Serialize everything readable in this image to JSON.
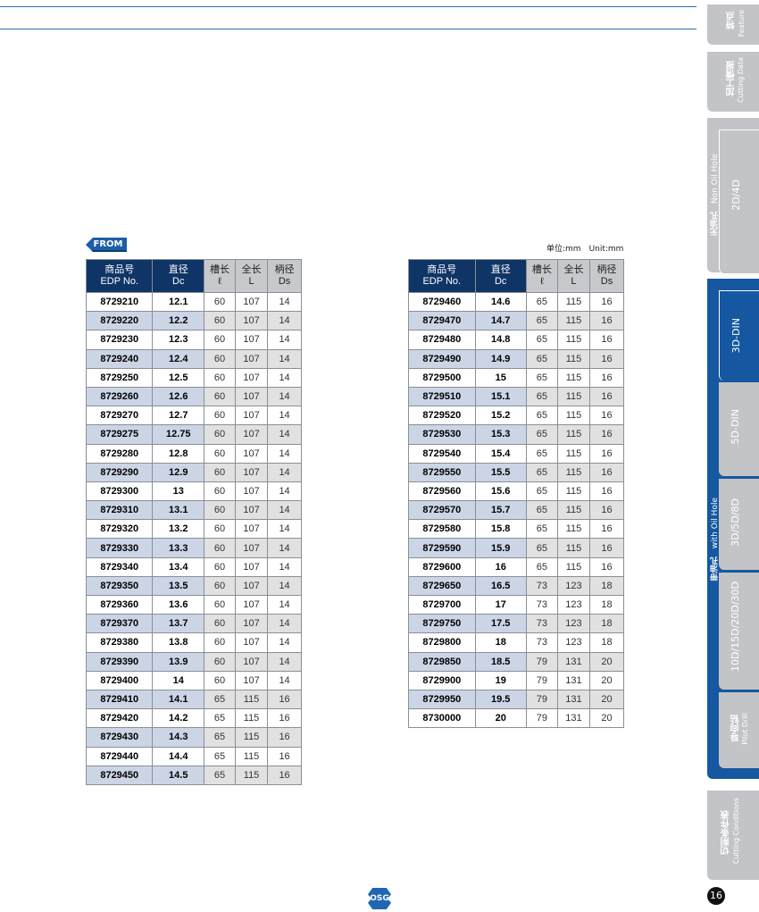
{
  "badge": "FROM",
  "unit": "单位:mm　Unit:mm",
  "headers": [
    [
      "商品号",
      "EDP No."
    ],
    [
      "直径",
      "Dc"
    ],
    [
      "槽长",
      "ℓ"
    ],
    [
      "全长",
      "L"
    ],
    [
      "柄径",
      "Ds"
    ]
  ],
  "left_rows": [
    [
      "8729210",
      "12.1",
      "60",
      "107",
      "14"
    ],
    [
      "8729220",
      "12.2",
      "60",
      "107",
      "14"
    ],
    [
      "8729230",
      "12.3",
      "60",
      "107",
      "14"
    ],
    [
      "8729240",
      "12.4",
      "60",
      "107",
      "14"
    ],
    [
      "8729250",
      "12.5",
      "60",
      "107",
      "14"
    ],
    [
      "8729260",
      "12.6",
      "60",
      "107",
      "14"
    ],
    [
      "8729270",
      "12.7",
      "60",
      "107",
      "14"
    ],
    [
      "8729275",
      "12.75",
      "60",
      "107",
      "14"
    ],
    [
      "8729280",
      "12.8",
      "60",
      "107",
      "14"
    ],
    [
      "8729290",
      "12.9",
      "60",
      "107",
      "14"
    ],
    [
      "8729300",
      "13",
      "60",
      "107",
      "14"
    ],
    [
      "8729310",
      "13.1",
      "60",
      "107",
      "14"
    ],
    [
      "8729320",
      "13.2",
      "60",
      "107",
      "14"
    ],
    [
      "8729330",
      "13.3",
      "60",
      "107",
      "14"
    ],
    [
      "8729340",
      "13.4",
      "60",
      "107",
      "14"
    ],
    [
      "8729350",
      "13.5",
      "60",
      "107",
      "14"
    ],
    [
      "8729360",
      "13.6",
      "60",
      "107",
      "14"
    ],
    [
      "8729370",
      "13.7",
      "60",
      "107",
      "14"
    ],
    [
      "8729380",
      "13.8",
      "60",
      "107",
      "14"
    ],
    [
      "8729390",
      "13.9",
      "60",
      "107",
      "14"
    ],
    [
      "8729400",
      "14",
      "60",
      "107",
      "14"
    ],
    [
      "8729410",
      "14.1",
      "65",
      "115",
      "16"
    ],
    [
      "8729420",
      "14.2",
      "65",
      "115",
      "16"
    ],
    [
      "8729430",
      "14.3",
      "65",
      "115",
      "16"
    ],
    [
      "8729440",
      "14.4",
      "65",
      "115",
      "16"
    ],
    [
      "8729450",
      "14.5",
      "65",
      "115",
      "16"
    ]
  ],
  "right_rows": [
    [
      "8729460",
      "14.6",
      "65",
      "115",
      "16"
    ],
    [
      "8729470",
      "14.7",
      "65",
      "115",
      "16"
    ],
    [
      "8729480",
      "14.8",
      "65",
      "115",
      "16"
    ],
    [
      "8729490",
      "14.9",
      "65",
      "115",
      "16"
    ],
    [
      "8729500",
      "15",
      "65",
      "115",
      "16"
    ],
    [
      "8729510",
      "15.1",
      "65",
      "115",
      "16"
    ],
    [
      "8729520",
      "15.2",
      "65",
      "115",
      "16"
    ],
    [
      "8729530",
      "15.3",
      "65",
      "115",
      "16"
    ],
    [
      "8729540",
      "15.4",
      "65",
      "115",
      "16"
    ],
    [
      "8729550",
      "15.5",
      "65",
      "115",
      "16"
    ],
    [
      "8729560",
      "15.6",
      "65",
      "115",
      "16"
    ],
    [
      "8729570",
      "15.7",
      "65",
      "115",
      "16"
    ],
    [
      "8729580",
      "15.8",
      "65",
      "115",
      "16"
    ],
    [
      "8729590",
      "15.9",
      "65",
      "115",
      "16"
    ],
    [
      "8729600",
      "16",
      "65",
      "115",
      "16"
    ],
    [
      "8729650",
      "16.5",
      "73",
      "123",
      "18"
    ],
    [
      "8729700",
      "17",
      "73",
      "123",
      "18"
    ],
    [
      "8729750",
      "17.5",
      "73",
      "123",
      "18"
    ],
    [
      "8729800",
      "18",
      "73",
      "123",
      "18"
    ],
    [
      "8729850",
      "18.5",
      "79",
      "131",
      "20"
    ],
    [
      "8729900",
      "19",
      "79",
      "131",
      "20"
    ],
    [
      "8729950",
      "19.5",
      "79",
      "131",
      "20"
    ],
    [
      "8730000",
      "20",
      "79",
      "131",
      "20"
    ]
  ],
  "sidebar": {
    "feature": [
      "特点",
      "Feature"
    ],
    "cutting_data": [
      "加工情报",
      "Cutting Data"
    ],
    "non_oil": [
      "无油孔",
      "Non Oil Hole"
    ],
    "tab_2d4d": "2D/4D",
    "with_oil": [
      "带油孔",
      "with Oil Hole"
    ],
    "tab_3ddin": "3D-DIN",
    "tab_5ddin": "5D-DIN",
    "tab_358": "3D/5D/8D",
    "tab_long": "10D/15D/20D/30D",
    "pilot": [
      "导向钻",
      "Pilot Drill"
    ],
    "conditions": [
      "切削条件表",
      "Cutting Conditions"
    ]
  },
  "page_number": "16",
  "logo": "OSG",
  "colors": {
    "header_dark": "#0f3466",
    "accent": "#1d5ea8",
    "tab_gray": "#c3c4c7"
  }
}
